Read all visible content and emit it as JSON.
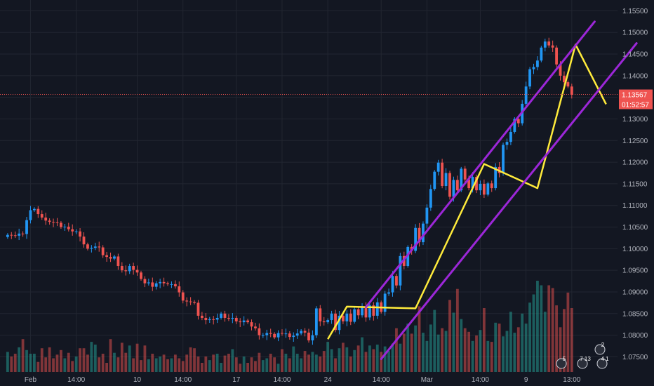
{
  "colors": {
    "background": "#131722",
    "grid": "#222631",
    "up": "#26a69a",
    "down": "#ef5350",
    "candle_up": "#2196f3",
    "candle_down": "#ef5350",
    "vol_up": "#26a69a",
    "vol_down": "#ef5350",
    "channel": "#9c27d8",
    "zigzag": "#ffeb3b",
    "price_line": "#ef5350",
    "axis_text": "#b2b5be"
  },
  "price_tag": {
    "price": "1.13567",
    "countdown": "01:52:57",
    "value": 1.13567
  },
  "badges": [
    "5",
    "7 13",
    "4 1",
    "2"
  ],
  "chart_data": {
    "type": "candlestick",
    "title": "",
    "ylim": [
      1.0715,
      1.1575
    ],
    "x_range": [
      -2,
      160
    ],
    "y_ticks": [
      1.155,
      1.15,
      1.145,
      1.14,
      1.135,
      1.13,
      1.125,
      1.12,
      1.115,
      1.11,
      1.105,
      1.1,
      1.095,
      1.09,
      1.085,
      1.08,
      1.075
    ],
    "y_tick_labels": [
      "1.15500",
      "1.15000",
      "1.14500",
      "1.14000",
      "1.13500",
      "1.13000",
      "1.12500",
      "1.12000",
      "1.11500",
      "1.11000",
      "1.10500",
      "1.10000",
      "1.09500",
      "1.09000",
      "1.08500",
      "1.08000",
      "1.07500"
    ],
    "x_ticks": [
      {
        "label": "Feb",
        "x": 6
      },
      {
        "label": "14:00",
        "x": 18
      },
      {
        "label": "10",
        "x": 34
      },
      {
        "label": "14:00",
        "x": 46
      },
      {
        "label": "17",
        "x": 60
      },
      {
        "label": "14:00",
        "x": 72
      },
      {
        "label": "24",
        "x": 84
      },
      {
        "label": "14:00",
        "x": 98
      },
      {
        "label": "Mar",
        "x": 110
      },
      {
        "label": "14:00",
        "x": 124
      },
      {
        "label": "9",
        "x": 136
      },
      {
        "label": "13:00",
        "x": 148
      }
    ],
    "close_series": [
      1.1032,
      1.1031,
      1.103,
      1.1035,
      1.1034,
      1.1066,
      1.1089,
      1.1092,
      1.108,
      1.1072,
      1.1065,
      1.1062,
      1.1061,
      1.106,
      1.105,
      1.1051,
      1.1045,
      1.104,
      1.104,
      1.1028,
      1.101,
      1.1,
      1.1002,
      1.1005,
      1.1003,
      1.0985,
      1.0981,
      1.0977,
      1.0982,
      1.096,
      1.095,
      1.0948,
      1.096,
      1.0951,
      1.0945,
      1.093,
      1.092,
      1.0922,
      1.0912,
      1.092,
      1.0923,
      1.092,
      1.0918,
      1.0918,
      1.0913,
      1.0899,
      1.088,
      1.0878,
      1.0877,
      1.0875,
      1.0845,
      1.084,
      1.0835,
      1.0837,
      1.0836,
      1.084,
      1.085,
      1.084,
      1.0838,
      1.084,
      1.0832,
      1.083,
      1.0834,
      1.083,
      1.082,
      1.0816,
      1.08,
      1.08,
      1.0805,
      1.0803,
      1.0795,
      1.0805,
      1.0804,
      1.0804,
      1.0796,
      1.0799,
      1.0804,
      1.081,
      1.0806,
      1.0788,
      1.08,
      1.0862,
      1.0832,
      1.083,
      1.0835,
      1.085,
      1.0812,
      1.0845,
      1.0832,
      1.085,
      1.0831,
      1.086,
      1.0846,
      1.0865,
      1.0841,
      1.0869,
      1.0845,
      1.0876,
      1.0854,
      1.0896,
      1.0899,
      1.0937,
      1.0915,
      1.0983,
      1.096,
      1.1004,
      1.0995,
      1.1048,
      1.1015,
      1.1058,
      1.1095,
      1.1138,
      1.1178,
      1.1199,
      1.1145,
      1.1175,
      1.112,
      1.1159,
      1.1135,
      1.1185,
      1.116,
      1.114,
      1.1166,
      1.1135,
      1.115,
      1.1125,
      1.1151,
      1.114,
      1.1189,
      1.1175,
      1.124,
      1.1247,
      1.127,
      1.13,
      1.129,
      1.1335,
      1.1375,
      1.1415,
      1.142,
      1.1435,
      1.1465,
      1.1479,
      1.147,
      1.1465,
      1.1426,
      1.14,
      1.1385,
      1.1375,
      1.1356
    ],
    "volume_max": 100,
    "volume_series": [
      22,
      17,
      20,
      27,
      36,
      24,
      20,
      20,
      11,
      26,
      16,
      27,
      15,
      19,
      24,
      15,
      21,
      12,
      17,
      26,
      26,
      19,
      33,
      30,
      16,
      20,
      10,
      36,
      21,
      16,
      32,
      21,
      29,
      15,
      31,
      13,
      29,
      14,
      20,
      15,
      17,
      19,
      14,
      15,
      19,
      15,
      12,
      19,
      27,
      26,
      17,
      10,
      17,
      13,
      19,
      20,
      10,
      18,
      20,
      25,
      16,
      9,
      17,
      10,
      16,
      12,
      21,
      13,
      15,
      20,
      16,
      9,
      25,
      20,
      15,
      28,
      20,
      15,
      23,
      19,
      22,
      19,
      17,
      23,
      33,
      25,
      15,
      26,
      32,
      27,
      17,
      24,
      29,
      38,
      22,
      29,
      25,
      30,
      22,
      28,
      23,
      31,
      48,
      31,
      42,
      53,
      42,
      51,
      72,
      43,
      34,
      52,
      68,
      41,
      48,
      45,
      79,
      65,
      91,
      58,
      48,
      44,
      34,
      40,
      46,
      70,
      34,
      33,
      54,
      53,
      39,
      45,
      66,
      43,
      49,
      64,
      53,
      76,
      85,
      100,
      95,
      66,
      95,
      92,
      73,
      49,
      69,
      87,
      70,
      25
    ],
    "channel_upper": [
      [
        94,
        1.0865
      ],
      [
        154,
        1.1525
      ]
    ],
    "channel_lower": [
      [
        98,
        1.0745
      ],
      [
        165,
        1.1475
      ]
    ],
    "zigzag": [
      [
        84,
        1.0791
      ],
      [
        89,
        1.0866
      ],
      [
        107,
        1.0862
      ],
      [
        125,
        1.1196
      ],
      [
        139,
        1.114
      ],
      [
        149,
        1.1472
      ],
      [
        157,
        1.1334
      ]
    ]
  }
}
